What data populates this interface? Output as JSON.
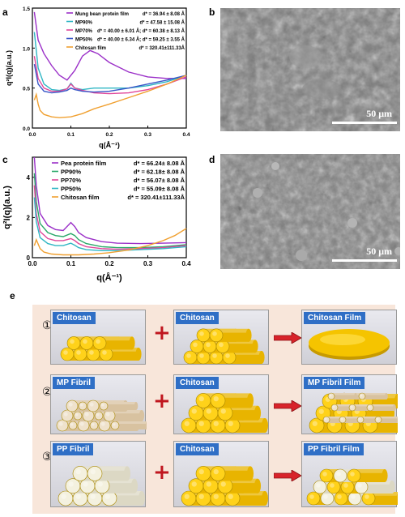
{
  "panel_letters": {
    "a": "a",
    "b": "b",
    "c": "c",
    "d": "d",
    "e": "e"
  },
  "colors": {
    "purple": "#9b30c8",
    "cyan": "#2fb6c4",
    "pink": "#e0469a",
    "blue": "#3a57c8",
    "orange": "#f0a030",
    "green": "#2aa86a",
    "tag_blue": "#2f6fc6",
    "plus_red": "#c0161e"
  },
  "chart_data": [
    {
      "type": "line",
      "title": "",
      "xlabel": "q(Å⁻¹)",
      "ylabel": "q²I(q)(a.u.)",
      "xlim": [
        0,
        0.4
      ],
      "ylim": [
        0,
        1.5
      ],
      "x_ticks": [
        "0.0",
        "0.1",
        "0.2",
        "0.3",
        "0.4"
      ],
      "y_ticks": [
        "0.0",
        "0.5",
        "1.0",
        "1.5"
      ],
      "legend_position": "top-right",
      "series": [
        {
          "name": "Mung bean protein film",
          "annotation": "d* = 36.94 ± 8.08 Å",
          "color_key": "purple",
          "x": [
            0.005,
            0.015,
            0.03,
            0.05,
            0.07,
            0.09,
            0.11,
            0.13,
            0.15,
            0.17,
            0.2,
            0.25,
            0.3,
            0.35,
            0.4
          ],
          "y": [
            1.45,
            1.1,
            0.93,
            0.78,
            0.66,
            0.6,
            0.72,
            0.9,
            0.97,
            0.93,
            0.82,
            0.7,
            0.64,
            0.62,
            0.62
          ]
        },
        {
          "name": "MP90%",
          "annotation": "d* = 47.58 ± 15.08 Å",
          "color_key": "cyan",
          "x": [
            0.005,
            0.015,
            0.03,
            0.05,
            0.07,
            0.09,
            0.1,
            0.11,
            0.13,
            0.16,
            0.2,
            0.25,
            0.3,
            0.35,
            0.4
          ],
          "y": [
            1.2,
            0.75,
            0.55,
            0.48,
            0.47,
            0.49,
            0.56,
            0.5,
            0.48,
            0.5,
            0.5,
            0.5,
            0.53,
            0.58,
            0.66
          ]
        },
        {
          "name": "MP70%",
          "annotation": "d* = 40.00 ± 6.01 Å; d* = 60.38 ± 8.13 Å",
          "color_key": "pink",
          "x": [
            0.005,
            0.015,
            0.03,
            0.05,
            0.07,
            0.09,
            0.1,
            0.11,
            0.13,
            0.16,
            0.2,
            0.25,
            0.3,
            0.35,
            0.4
          ],
          "y": [
            0.9,
            0.62,
            0.5,
            0.46,
            0.46,
            0.49,
            0.55,
            0.5,
            0.47,
            0.44,
            0.43,
            0.44,
            0.48,
            0.55,
            0.64
          ]
        },
        {
          "name": "MP50%",
          "annotation": "d* = 40.00 ± 6.34 Å; d* = 59.25 ± 3.55 Å",
          "color_key": "blue",
          "x": [
            0.005,
            0.015,
            0.03,
            0.05,
            0.07,
            0.09,
            0.1,
            0.11,
            0.13,
            0.16,
            0.2,
            0.25,
            0.3,
            0.35,
            0.4
          ],
          "y": [
            0.8,
            0.55,
            0.46,
            0.44,
            0.45,
            0.47,
            0.5,
            0.48,
            0.46,
            0.45,
            0.46,
            0.5,
            0.55,
            0.6,
            0.66
          ]
        },
        {
          "name": "Chitosan film",
          "annotation": "d* = 320.41±111.33Å",
          "color_key": "orange",
          "x": [
            0.005,
            0.01,
            0.015,
            0.02,
            0.03,
            0.05,
            0.07,
            0.1,
            0.13,
            0.16,
            0.2,
            0.25,
            0.3,
            0.35,
            0.4
          ],
          "y": [
            0.35,
            0.42,
            0.3,
            0.22,
            0.17,
            0.14,
            0.13,
            0.14,
            0.18,
            0.24,
            0.3,
            0.38,
            0.46,
            0.55,
            0.66
          ]
        }
      ]
    },
    {
      "type": "line",
      "title": "",
      "xlabel": "q(Å⁻¹)",
      "ylabel": "q²I(q)(a.u.)",
      "xlim": [
        0,
        0.4
      ],
      "ylim": [
        0,
        5
      ],
      "x_ticks": [
        "0.0",
        "0.1",
        "0.2",
        "0.3",
        "0.4"
      ],
      "y_ticks": [
        "0",
        "2",
        "4"
      ],
      "legend_position": "top-right",
      "series": [
        {
          "name": "Pea protein film",
          "annotation": "d* = 66.24± 8.08 Å",
          "color_key": "purple",
          "x": [
            0.005,
            0.01,
            0.02,
            0.04,
            0.06,
            0.08,
            0.1,
            0.11,
            0.12,
            0.14,
            0.18,
            0.22,
            0.28,
            0.34,
            0.4
          ],
          "y": [
            5,
            3.6,
            2.2,
            1.6,
            1.4,
            1.35,
            1.75,
            1.55,
            1.25,
            1.0,
            0.8,
            0.72,
            0.7,
            0.72,
            0.75
          ]
        },
        {
          "name": "PP90%",
          "annotation": "d* = 62.18± 8.08 Å",
          "color_key": "green",
          "x": [
            0.005,
            0.01,
            0.02,
            0.04,
            0.06,
            0.08,
            0.1,
            0.11,
            0.12,
            0.14,
            0.18,
            0.22,
            0.28,
            0.34,
            0.4
          ],
          "y": [
            4.2,
            2.8,
            1.7,
            1.25,
            1.1,
            1.05,
            1.2,
            1.1,
            0.9,
            0.7,
            0.55,
            0.5,
            0.5,
            0.55,
            0.65
          ]
        },
        {
          "name": "PP70%",
          "annotation": "d* = 56.07± 8.08 Å",
          "color_key": "pink",
          "x": [
            0.005,
            0.01,
            0.02,
            0.04,
            0.06,
            0.08,
            0.1,
            0.11,
            0.12,
            0.14,
            0.18,
            0.22,
            0.28,
            0.34,
            0.4
          ],
          "y": [
            3.6,
            2.2,
            1.3,
            0.95,
            0.85,
            0.85,
            0.95,
            0.85,
            0.7,
            0.55,
            0.45,
            0.42,
            0.45,
            0.5,
            0.6
          ]
        },
        {
          "name": "PP50%",
          "annotation": "d* = 55.09± 8.08 Å",
          "color_key": "cyan",
          "x": [
            0.005,
            0.01,
            0.02,
            0.04,
            0.06,
            0.08,
            0.1,
            0.11,
            0.12,
            0.14,
            0.18,
            0.22,
            0.28,
            0.34,
            0.4
          ],
          "y": [
            3.0,
            1.8,
            1.0,
            0.7,
            0.6,
            0.6,
            0.72,
            0.62,
            0.5,
            0.4,
            0.35,
            0.35,
            0.4,
            0.45,
            0.55
          ]
        },
        {
          "name": "Chitosan film",
          "annotation": "d* = 320.41±111.33Å",
          "color_key": "orange",
          "x": [
            0.005,
            0.01,
            0.02,
            0.03,
            0.05,
            0.08,
            0.12,
            0.16,
            0.2,
            0.25,
            0.3,
            0.34,
            0.37,
            0.4
          ],
          "y": [
            0.6,
            0.9,
            0.45,
            0.28,
            0.18,
            0.14,
            0.14,
            0.18,
            0.25,
            0.38,
            0.6,
            0.85,
            1.1,
            1.45
          ]
        }
      ]
    }
  ],
  "sem_b": {
    "scale": "50 μm"
  },
  "sem_d": {
    "scale": "50 μm"
  },
  "schematic": {
    "rows": [
      {
        "num": "①",
        "left_tag": "Chitosan",
        "mid_tag": "Chitosan",
        "right_tag": "Chitosan Film"
      },
      {
        "num": "②",
        "left_tag": "MP Fibril",
        "mid_tag": "Chitosan",
        "right_tag": "MP Fibril Film"
      },
      {
        "num": "③",
        "left_tag": "PP Fibril",
        "mid_tag": "Chitosan",
        "right_tag": "PP Fibril Film"
      }
    ],
    "plus": "+"
  }
}
